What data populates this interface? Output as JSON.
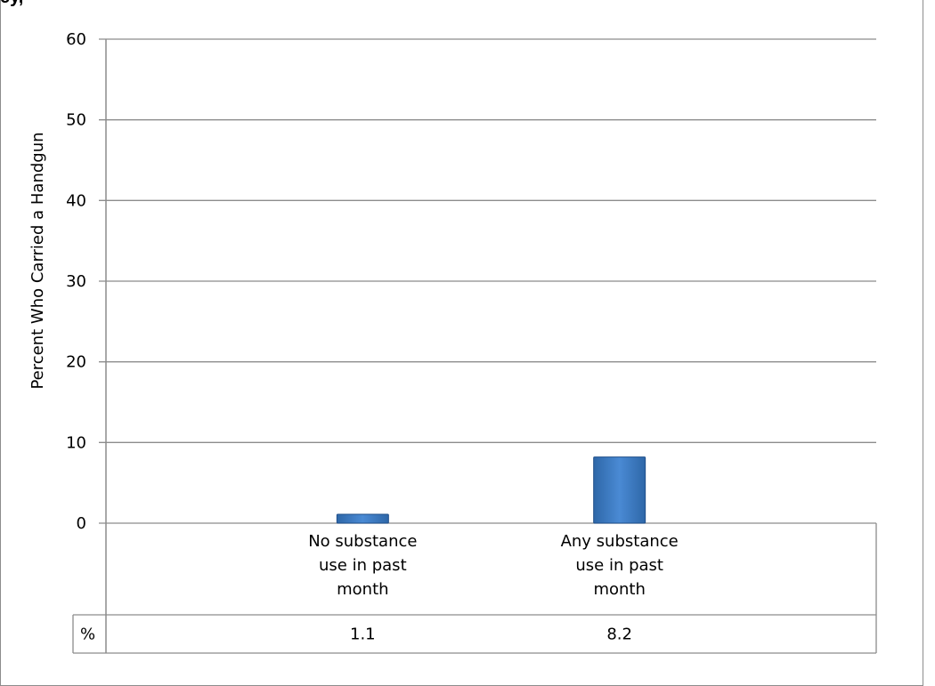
{
  "cropped_title": "ey,",
  "chart_data": {
    "type": "bar",
    "categories": [
      "No substance use in past month",
      "Any substance use in past month"
    ],
    "category_label_lines": [
      [
        "No substance",
        "use in past",
        "month"
      ],
      [
        "Any substance",
        "use in past",
        "month"
      ]
    ],
    "values": [
      1.1,
      8.2
    ],
    "ylabel": "Percent Who Carried a Handgun",
    "ylim": [
      0,
      60
    ],
    "yticks": [
      0,
      10,
      20,
      30,
      40,
      50,
      60
    ],
    "grid": true,
    "table_row_label": "%",
    "table_values": [
      "1.1",
      "8.2"
    ],
    "bar_color": "#3f7fc8"
  }
}
